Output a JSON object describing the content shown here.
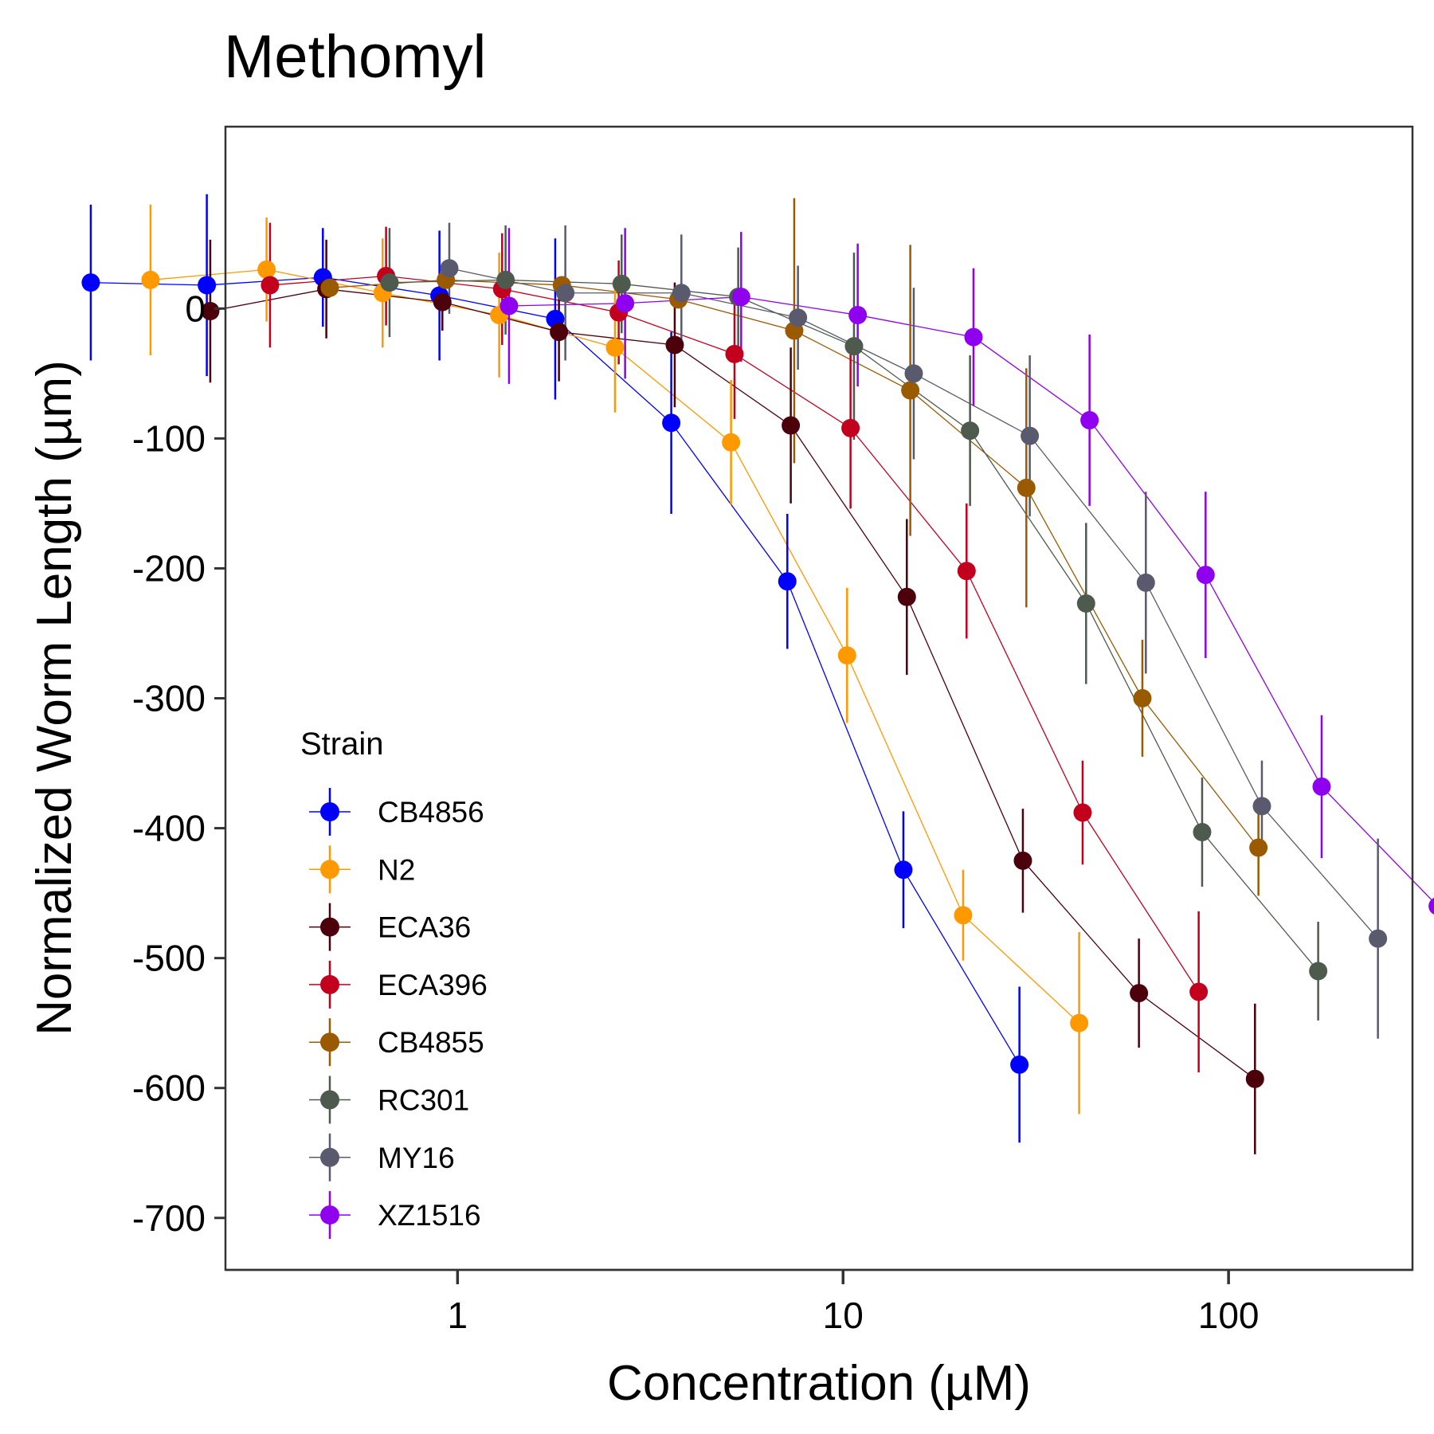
{
  "chart_data": {
    "type": "scatter",
    "title": "Methomyl",
    "xlabel": "Concentration (µM)",
    "ylabel": "Normalized Worm Length (µm)",
    "x_scale": "log10",
    "xlim": [
      0.25,
      300
    ],
    "ylim": [
      -740,
      140
    ],
    "x_ticks": [
      1,
      10,
      100
    ],
    "x_tick_labels": [
      "1",
      "10",
      "100"
    ],
    "y_ticks": [
      0,
      -100,
      -200,
      -300,
      -400,
      -500,
      -600,
      -700
    ],
    "y_tick_labels": [
      "0",
      "-100",
      "-200",
      "-300",
      "-400",
      "-500",
      "-600",
      "-700"
    ],
    "grid": false,
    "legend": {
      "title": "Strain",
      "position": "bottom-left-inside"
    },
    "series": [
      {
        "name": "CB4856",
        "color": "#0000FF",
        "x": [
          0.39,
          0.78,
          1.56,
          3.13,
          6.25,
          12.5,
          25,
          50,
          100
        ],
        "y": [
          20,
          18,
          24,
          10,
          -8,
          -88,
          -210,
          -432,
          -582
        ],
        "err": [
          60,
          70,
          38,
          50,
          62,
          70,
          52,
          45,
          60
        ]
      },
      {
        "name": "N2",
        "color": "#FF9900",
        "x": [
          0.39,
          0.78,
          1.56,
          3.13,
          6.25,
          12.5,
          25,
          50,
          100
        ],
        "y": [
          22,
          30,
          12,
          -5,
          -30,
          -103,
          -267,
          -467,
          -550
        ],
        "err": [
          58,
          40,
          42,
          48,
          50,
          48,
          52,
          35,
          70
        ]
      },
      {
        "name": "ECA36",
        "color": "#4B000B",
        "x": [
          0.39,
          0.78,
          1.56,
          3.13,
          6.25,
          12.5,
          25,
          50,
          100,
          200
        ],
        "y": [
          -2,
          15,
          5,
          -18,
          -28,
          -90,
          -222,
          -425,
          -527,
          -593
        ],
        "err": [
          55,
          38,
          22,
          38,
          48,
          60,
          60,
          40,
          42,
          58
        ]
      },
      {
        "name": "ECA396",
        "color": "#C2001E",
        "x": [
          0.39,
          0.78,
          1.56,
          3.13,
          6.25,
          12.5,
          25,
          50,
          100
        ],
        "y": [
          18,
          25,
          15,
          -3,
          -35,
          -92,
          -202,
          -388,
          -526
        ],
        "err": [
          48,
          38,
          43,
          40,
          50,
          62,
          52,
          40,
          62
        ]
      },
      {
        "name": "CB4855",
        "color": "#9A5A00",
        "x": [
          0.39,
          0.78,
          1.56,
          3.13,
          6.25,
          12.5,
          25,
          50,
          100
        ],
        "y": [
          16,
          22,
          18,
          7,
          -17,
          -63,
          -138,
          -300,
          -415
        ],
        "err": [
          0,
          0,
          0,
          0,
          102,
          112,
          92,
          45,
          37
        ]
      },
      {
        "name": "RC301",
        "color": "#4F5A4F",
        "x": [
          0.39,
          0.78,
          1.56,
          3.13,
          6.25,
          12.5,
          25,
          50,
          100
        ],
        "y": [
          20,
          22,
          19,
          9,
          -29,
          -94,
          -227,
          -403,
          -510
        ],
        "err": [
          42,
          42,
          38,
          38,
          72,
          58,
          62,
          42,
          38
        ]
      },
      {
        "name": "MY16",
        "color": "#5A5A6E",
        "x": [
          0.39,
          0.78,
          1.56,
          3.13,
          6.25,
          12.5,
          25,
          50,
          100
        ],
        "y": [
          31,
          12,
          12,
          -7,
          -50,
          -98,
          -211,
          -383,
          -485
        ],
        "err": [
          35,
          52,
          45,
          40,
          66,
          62,
          70,
          35,
          77
        ]
      },
      {
        "name": "XZ1516",
        "color": "#8F00EE",
        "x": [
          0.39,
          0.78,
          1.56,
          3.13,
          6.25,
          12.5,
          25,
          50,
          100
        ],
        "y": [
          2,
          4,
          9,
          -5,
          -22,
          -86,
          -205,
          -368,
          -460
        ],
        "err": [
          60,
          58,
          50,
          55,
          53,
          66,
          64,
          55,
          72
        ]
      }
    ]
  }
}
